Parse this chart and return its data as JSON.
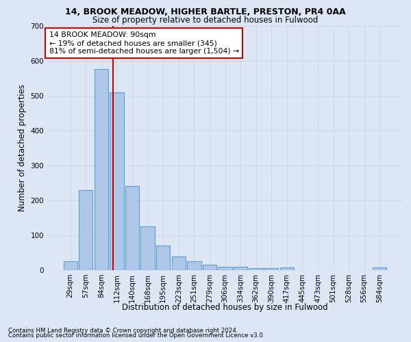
{
  "title1": "14, BROOK MEADOW, HIGHER BARTLE, PRESTON, PR4 0AA",
  "title2": "Size of property relative to detached houses in Fulwood",
  "xlabel": "Distribution of detached houses by size in Fulwood",
  "ylabel": "Number of detached properties",
  "footnote1": "Contains HM Land Registry data © Crown copyright and database right 2024.",
  "footnote2": "Contains public sector information licensed under the Open Government Licence v3.0.",
  "annotation_line1": "14 BROOK MEADOW: 90sqm",
  "annotation_line2": "← 19% of detached houses are smaller (345)",
  "annotation_line3": "81% of semi-detached houses are larger (1,504) →",
  "bar_labels": [
    "29sqm",
    "57sqm",
    "84sqm",
    "112sqm",
    "140sqm",
    "168sqm",
    "195sqm",
    "223sqm",
    "251sqm",
    "279sqm",
    "306sqm",
    "334sqm",
    "362sqm",
    "390sqm",
    "417sqm",
    "445sqm",
    "473sqm",
    "501sqm",
    "528sqm",
    "556sqm",
    "584sqm"
  ],
  "bar_values": [
    25,
    230,
    575,
    510,
    240,
    125,
    70,
    40,
    25,
    15,
    10,
    10,
    5,
    5,
    8,
    0,
    0,
    0,
    0,
    0,
    8
  ],
  "bar_color": "#aec6e8",
  "bar_edgecolor": "#5a9fd4",
  "vline_x": 2.75,
  "vline_color": "#cc0000",
  "ylim": [
    0,
    700
  ],
  "yticks": [
    0,
    100,
    200,
    300,
    400,
    500,
    600,
    700
  ],
  "grid_color": "#d0d8e8",
  "bg_color": "#dce6f5",
  "annotation_box_edgecolor": "#cc0000",
  "annotation_box_facecolor": "#ffffff"
}
